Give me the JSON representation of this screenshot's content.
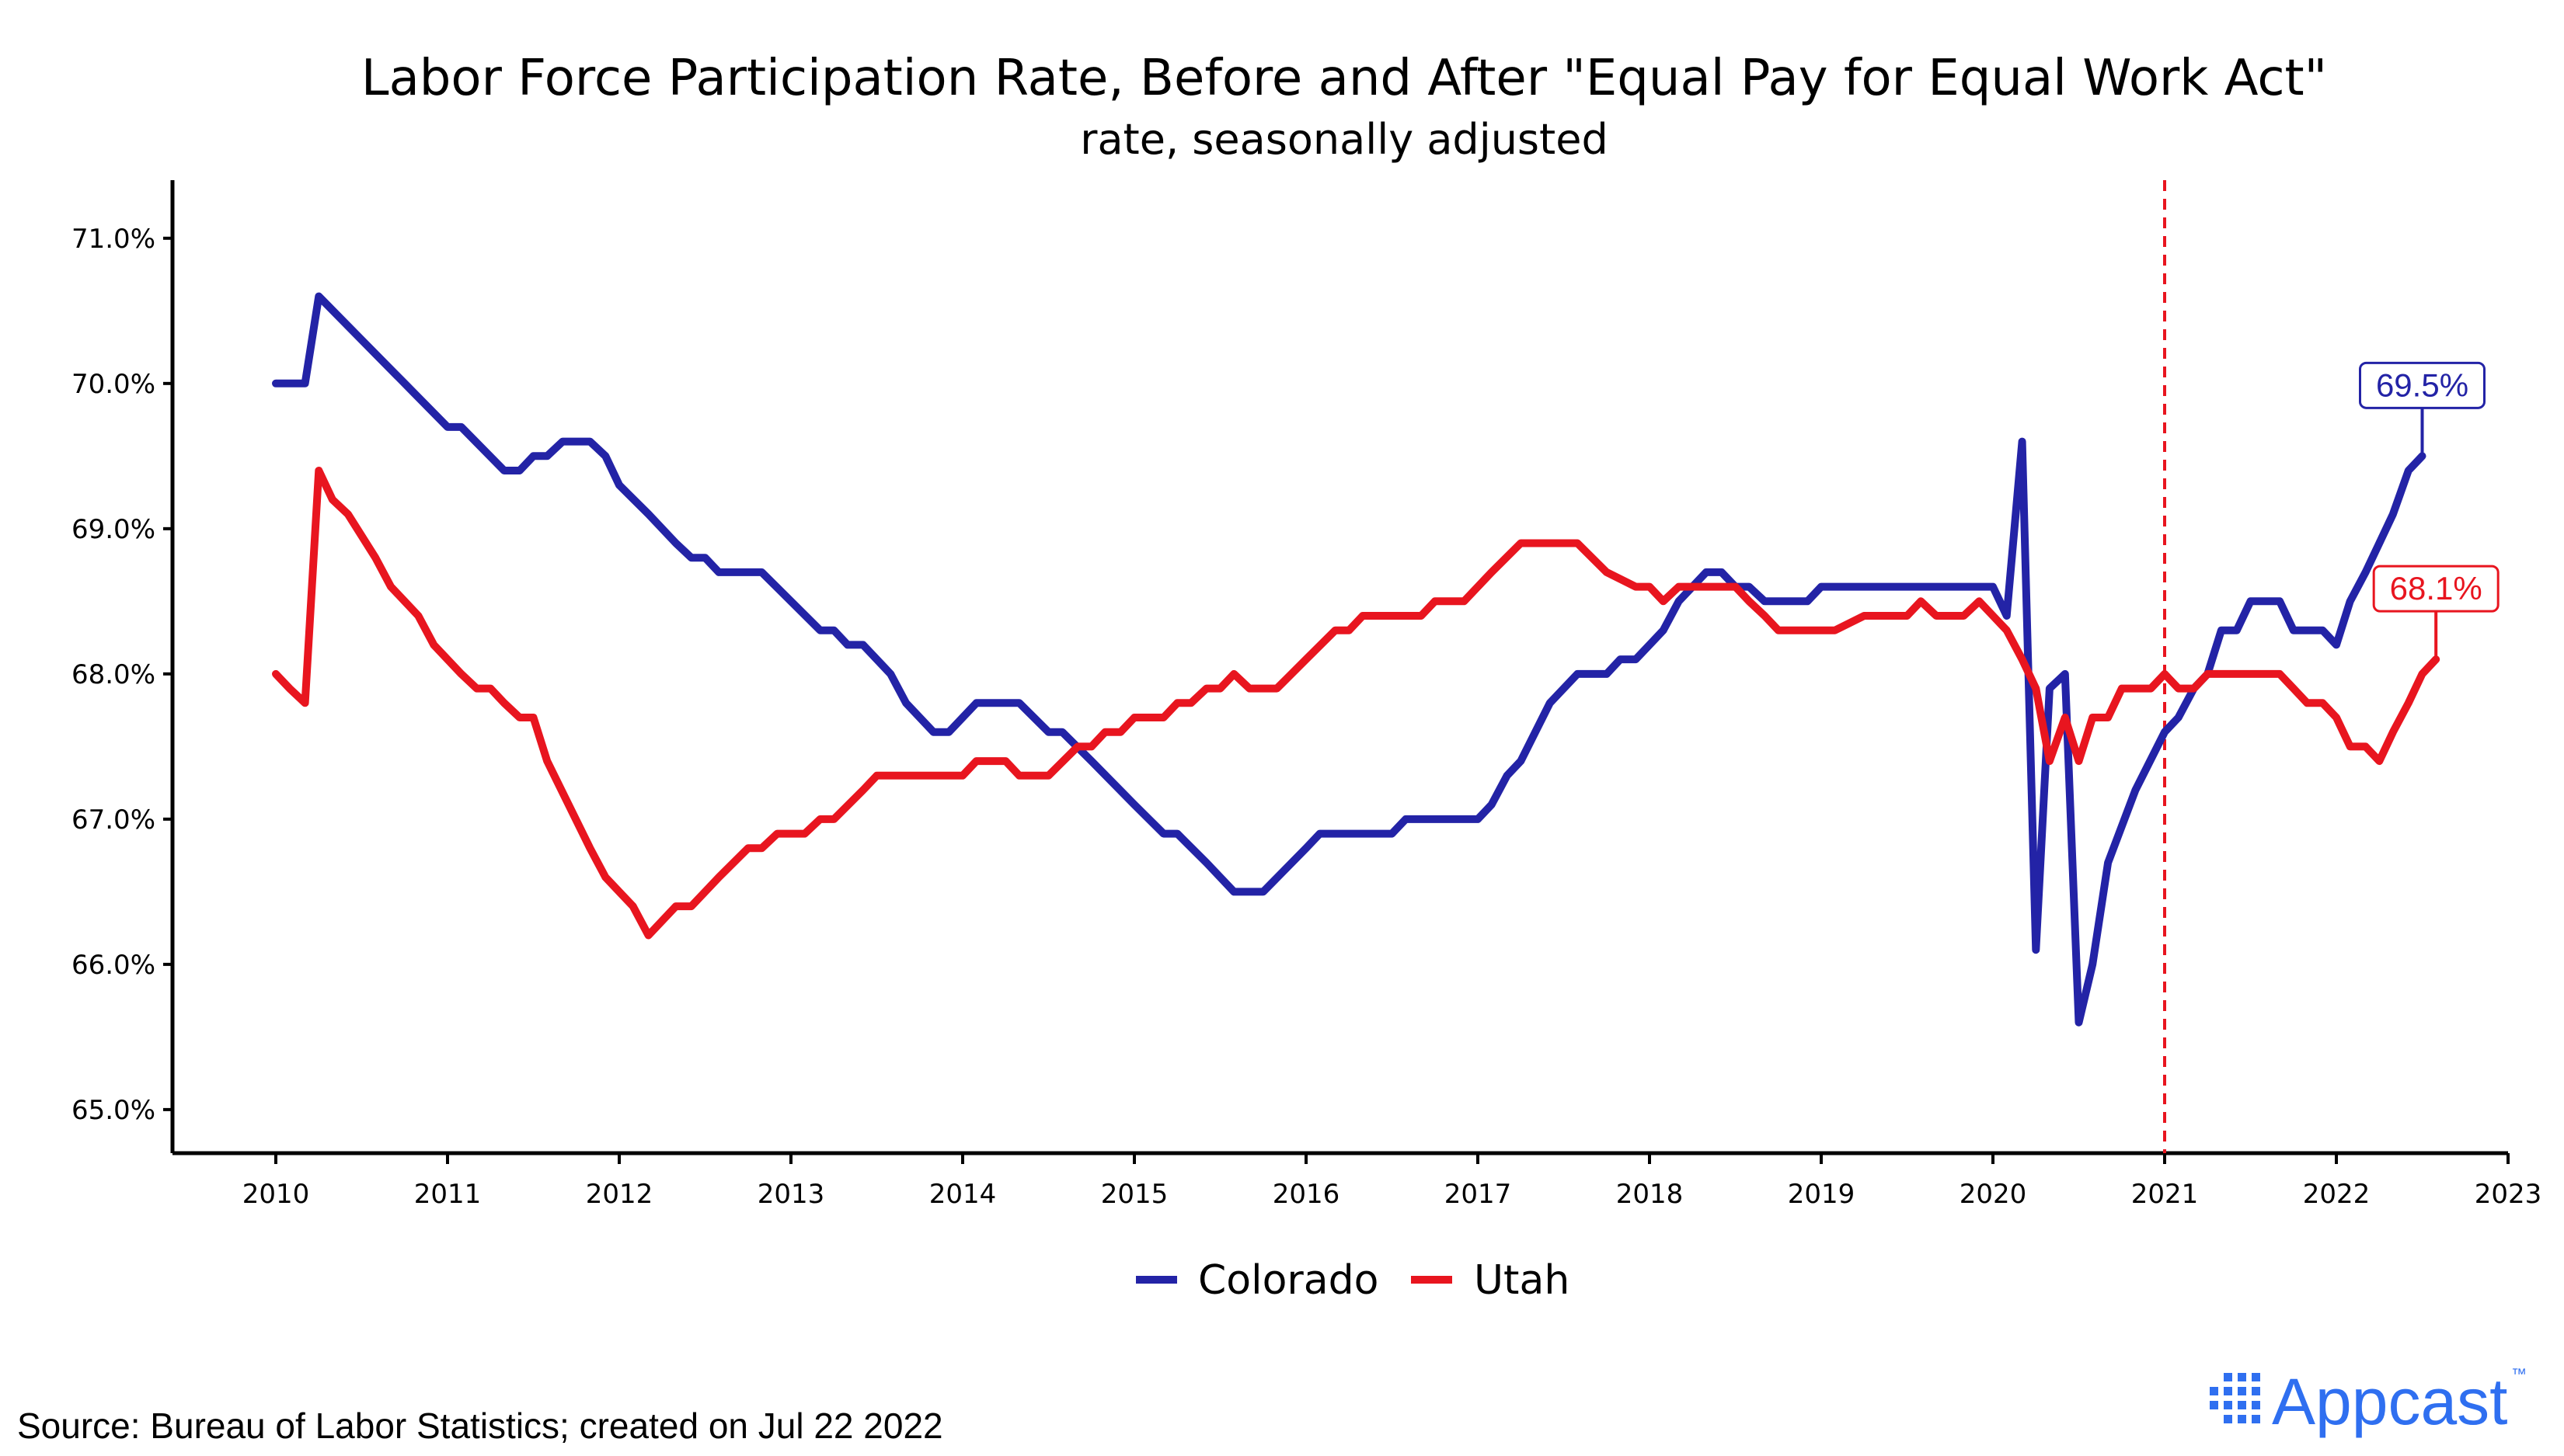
{
  "chart_data": {
    "type": "line",
    "title": "Labor Force Participation Rate, Before and After \"Equal Pay for Equal Work Act\"",
    "subtitle": "rate, seasonally adjusted",
    "xlabel": "",
    "ylabel": "",
    "xlim": [
      2010,
      2023
    ],
    "ylim": [
      64.7,
      71.4
    ],
    "x_ticks": [
      2010,
      2011,
      2012,
      2013,
      2014,
      2015,
      2016,
      2017,
      2018,
      2019,
      2020,
      2021,
      2022,
      2023
    ],
    "x_tick_labels": [
      "2010",
      "2011",
      "2012",
      "2013",
      "2014",
      "2015",
      "2016",
      "2017",
      "2018",
      "2019",
      "2020",
      "2021",
      "2022",
      "2023"
    ],
    "y_ticks": [
      65,
      66,
      67,
      68,
      69,
      70,
      71
    ],
    "y_tick_labels": [
      "65.0%",
      "66.0%",
      "67.0%",
      "68.0%",
      "69.0%",
      "70.0%",
      "71.0%"
    ],
    "reference_line": {
      "x": 2021.0,
      "style": "dashed",
      "color": "#e8151f"
    },
    "legend_position": "bottom",
    "grid": false,
    "series": [
      {
        "name": "Colorado",
        "color": "#2323a6",
        "end_label": "69.5%",
        "points": [
          [
            2010.0,
            70.0
          ],
          [
            2010.17,
            70.0
          ],
          [
            2010.25,
            70.6
          ],
          [
            2010.5,
            70.3
          ],
          [
            2010.75,
            70.0
          ],
          [
            2011.0,
            69.7
          ],
          [
            2011.08,
            69.7
          ],
          [
            2011.33,
            69.4
          ],
          [
            2011.42,
            69.4
          ],
          [
            2011.5,
            69.5
          ],
          [
            2011.58,
            69.5
          ],
          [
            2011.67,
            69.6
          ],
          [
            2011.83,
            69.6
          ],
          [
            2011.92,
            69.5
          ],
          [
            2012.0,
            69.3
          ],
          [
            2012.17,
            69.1
          ],
          [
            2012.33,
            68.9
          ],
          [
            2012.42,
            68.8
          ],
          [
            2012.5,
            68.8
          ],
          [
            2012.58,
            68.7
          ],
          [
            2012.83,
            68.7
          ],
          [
            2013.0,
            68.5
          ],
          [
            2013.17,
            68.3
          ],
          [
            2013.25,
            68.3
          ],
          [
            2013.33,
            68.2
          ],
          [
            2013.42,
            68.2
          ],
          [
            2013.58,
            68.0
          ],
          [
            2013.67,
            67.8
          ],
          [
            2013.83,
            67.6
          ],
          [
            2013.92,
            67.6
          ],
          [
            2014.08,
            67.8
          ],
          [
            2014.33,
            67.8
          ],
          [
            2014.5,
            67.6
          ],
          [
            2014.58,
            67.6
          ],
          [
            2014.75,
            67.4
          ],
          [
            2015.0,
            67.1
          ],
          [
            2015.17,
            66.9
          ],
          [
            2015.25,
            66.9
          ],
          [
            2015.42,
            66.7
          ],
          [
            2015.58,
            66.5
          ],
          [
            2015.75,
            66.5
          ],
          [
            2016.0,
            66.8
          ],
          [
            2016.08,
            66.9
          ],
          [
            2016.5,
            66.9
          ],
          [
            2016.58,
            67.0
          ],
          [
            2017.0,
            67.0
          ],
          [
            2017.08,
            67.1
          ],
          [
            2017.17,
            67.3
          ],
          [
            2017.25,
            67.4
          ],
          [
            2017.42,
            67.8
          ],
          [
            2017.58,
            68.0
          ],
          [
            2017.75,
            68.0
          ],
          [
            2017.83,
            68.1
          ],
          [
            2017.92,
            68.1
          ],
          [
            2018.0,
            68.2
          ],
          [
            2018.08,
            68.3
          ],
          [
            2018.17,
            68.5
          ],
          [
            2018.25,
            68.6
          ],
          [
            2018.33,
            68.7
          ],
          [
            2018.42,
            68.7
          ],
          [
            2018.5,
            68.6
          ],
          [
            2018.58,
            68.6
          ],
          [
            2018.67,
            68.5
          ],
          [
            2018.92,
            68.5
          ],
          [
            2019.0,
            68.6
          ],
          [
            2019.92,
            68.6
          ],
          [
            2020.0,
            68.6
          ],
          [
            2020.08,
            68.4
          ],
          [
            2020.17,
            69.6
          ],
          [
            2020.25,
            66.1
          ],
          [
            2020.33,
            67.9
          ],
          [
            2020.42,
            68.0
          ],
          [
            2020.5,
            65.6
          ],
          [
            2020.58,
            66.0
          ],
          [
            2020.67,
            66.7
          ],
          [
            2020.83,
            67.2
          ],
          [
            2021.0,
            67.6
          ],
          [
            2021.08,
            67.7
          ],
          [
            2021.17,
            67.9
          ],
          [
            2021.25,
            68.0
          ],
          [
            2021.33,
            68.3
          ],
          [
            2021.42,
            68.3
          ],
          [
            2021.5,
            68.5
          ],
          [
            2021.67,
            68.5
          ],
          [
            2021.75,
            68.3
          ],
          [
            2021.92,
            68.3
          ],
          [
            2022.0,
            68.2
          ],
          [
            2022.08,
            68.5
          ],
          [
            2022.17,
            68.7
          ],
          [
            2022.25,
            68.9
          ],
          [
            2022.33,
            69.1
          ],
          [
            2022.42,
            69.4
          ],
          [
            2022.5,
            69.5
          ]
        ]
      },
      {
        "name": "Utah",
        "color": "#e8151f",
        "end_label": "68.1%",
        "points": [
          [
            2010.0,
            68.0
          ],
          [
            2010.08,
            67.9
          ],
          [
            2010.17,
            67.8
          ],
          [
            2010.25,
            69.4
          ],
          [
            2010.33,
            69.2
          ],
          [
            2010.42,
            69.1
          ],
          [
            2010.58,
            68.8
          ],
          [
            2010.67,
            68.6
          ],
          [
            2010.75,
            68.5
          ],
          [
            2010.83,
            68.4
          ],
          [
            2010.92,
            68.2
          ],
          [
            2011.08,
            68.0
          ],
          [
            2011.17,
            67.9
          ],
          [
            2011.25,
            67.9
          ],
          [
            2011.33,
            67.8
          ],
          [
            2011.42,
            67.7
          ],
          [
            2011.5,
            67.7
          ],
          [
            2011.58,
            67.4
          ],
          [
            2011.83,
            66.8
          ],
          [
            2011.92,
            66.6
          ],
          [
            2012.0,
            66.5
          ],
          [
            2012.08,
            66.4
          ],
          [
            2012.17,
            66.2
          ],
          [
            2012.33,
            66.4
          ],
          [
            2012.42,
            66.4
          ],
          [
            2012.58,
            66.6
          ],
          [
            2012.75,
            66.8
          ],
          [
            2012.83,
            66.8
          ],
          [
            2012.92,
            66.9
          ],
          [
            2013.08,
            66.9
          ],
          [
            2013.17,
            67.0
          ],
          [
            2013.25,
            67.0
          ],
          [
            2013.42,
            67.2
          ],
          [
            2013.5,
            67.3
          ],
          [
            2014.0,
            67.3
          ],
          [
            2014.08,
            67.4
          ],
          [
            2014.25,
            67.4
          ],
          [
            2014.33,
            67.3
          ],
          [
            2014.5,
            67.3
          ],
          [
            2014.67,
            67.5
          ],
          [
            2014.75,
            67.5
          ],
          [
            2014.83,
            67.6
          ],
          [
            2014.92,
            67.6
          ],
          [
            2015.0,
            67.7
          ],
          [
            2015.17,
            67.7
          ],
          [
            2015.25,
            67.8
          ],
          [
            2015.33,
            67.8
          ],
          [
            2015.42,
            67.9
          ],
          [
            2015.5,
            67.9
          ],
          [
            2015.58,
            68.0
          ],
          [
            2015.67,
            67.9
          ],
          [
            2015.83,
            67.9
          ],
          [
            2016.0,
            68.1
          ],
          [
            2016.17,
            68.3
          ],
          [
            2016.25,
            68.3
          ],
          [
            2016.33,
            68.4
          ],
          [
            2016.67,
            68.4
          ],
          [
            2016.75,
            68.5
          ],
          [
            2016.92,
            68.5
          ],
          [
            2017.08,
            68.7
          ],
          [
            2017.25,
            68.9
          ],
          [
            2017.58,
            68.9
          ],
          [
            2017.75,
            68.7
          ],
          [
            2017.92,
            68.6
          ],
          [
            2018.0,
            68.6
          ],
          [
            2018.08,
            68.5
          ],
          [
            2018.17,
            68.6
          ],
          [
            2018.5,
            68.6
          ],
          [
            2018.58,
            68.5
          ],
          [
            2018.67,
            68.4
          ],
          [
            2018.75,
            68.3
          ],
          [
            2019.08,
            68.3
          ],
          [
            2019.25,
            68.4
          ],
          [
            2019.5,
            68.4
          ],
          [
            2019.58,
            68.5
          ],
          [
            2019.67,
            68.4
          ],
          [
            2019.83,
            68.4
          ],
          [
            2019.92,
            68.5
          ],
          [
            2020.0,
            68.4
          ],
          [
            2020.08,
            68.3
          ],
          [
            2020.17,
            68.1
          ],
          [
            2020.25,
            67.9
          ],
          [
            2020.33,
            67.4
          ],
          [
            2020.42,
            67.7
          ],
          [
            2020.5,
            67.4
          ],
          [
            2020.58,
            67.7
          ],
          [
            2020.67,
            67.7
          ],
          [
            2020.75,
            67.9
          ],
          [
            2020.92,
            67.9
          ],
          [
            2021.0,
            68.0
          ],
          [
            2021.08,
            67.9
          ],
          [
            2021.17,
            67.9
          ],
          [
            2021.25,
            68.0
          ],
          [
            2021.67,
            68.0
          ],
          [
            2021.75,
            67.9
          ],
          [
            2021.83,
            67.8
          ],
          [
            2021.92,
            67.8
          ],
          [
            2022.0,
            67.7
          ],
          [
            2022.08,
            67.5
          ],
          [
            2022.17,
            67.5
          ],
          [
            2022.25,
            67.4
          ],
          [
            2022.33,
            67.6
          ],
          [
            2022.42,
            67.8
          ],
          [
            2022.5,
            68.0
          ],
          [
            2022.58,
            68.1
          ]
        ]
      }
    ]
  },
  "source": "Source: Bureau of Labor Statistics; created on Jul 22 2022",
  "logo": {
    "text": "Appcast",
    "trademark": "™",
    "color": "#2f6ff0"
  }
}
